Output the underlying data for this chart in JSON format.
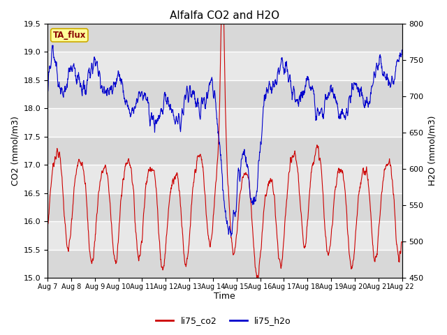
{
  "title": "Alfalfa CO2 and H2O",
  "xlabel": "Time",
  "ylabel_left": "CO2 (mmol/m3)",
  "ylabel_right": "H2O (mmol/m3)",
  "ylim_left": [
    15.0,
    19.5
  ],
  "ylim_right": [
    450,
    800
  ],
  "annotation_text": "TA_flux",
  "annotation_bbox_facecolor": "#ffff99",
  "annotation_bbox_edgecolor": "#ccaa00",
  "co2_color": "#cc0000",
  "h2o_color": "#0000cc",
  "legend_labels": [
    "li75_co2",
    "li75_h2o"
  ],
  "xtick_labels": [
    "Aug 7",
    "Aug 8",
    "Aug 9",
    "Aug 10",
    "Aug 11",
    "Aug 12",
    "Aug 13",
    "Aug 14",
    "Aug 15",
    "Aug 16",
    "Aug 17",
    "Aug 18",
    "Aug 19",
    "Aug 20",
    "Aug 21",
    "Aug 22"
  ],
  "yticks_left": [
    15.0,
    15.5,
    16.0,
    16.5,
    17.0,
    17.5,
    18.0,
    18.5,
    19.0,
    19.5
  ],
  "yticks_right": [
    450,
    500,
    550,
    600,
    650,
    700,
    750,
    800
  ],
  "plot_bg_color": "#e0e0e0",
  "grid_color": "white",
  "line_width": 0.8
}
